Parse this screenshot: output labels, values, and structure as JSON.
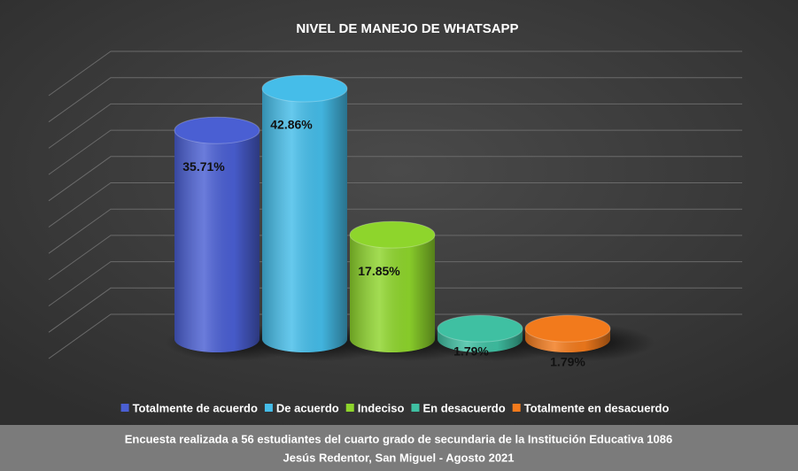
{
  "chart_data": {
    "type": "bar",
    "title": "NIVEL DE MANEJO DE WHATSAPP",
    "categories": [
      "Totalmente de acuerdo",
      "De acuerdo",
      "Indeciso",
      "En desacuerdo",
      "Totalmente en desacuerdo"
    ],
    "values": [
      35.71,
      42.86,
      17.85,
      1.79,
      1.79
    ],
    "value_labels": [
      "35.71%",
      "42.86%",
      "17.85%",
      "1.79%",
      "1.79%"
    ],
    "colors": [
      "#4a5fd3",
      "#45bde9",
      "#8ed52c",
      "#3fc0a2",
      "#f27a1c"
    ],
    "ylim": [
      0,
      50
    ],
    "yticks": [
      0,
      5,
      10,
      15,
      20,
      25,
      30,
      35,
      40,
      45,
      50
    ],
    "grid": true,
    "legend": "bottom",
    "footer": [
      "Encuesta realizada a 56 estudiantes del cuarto grado de secundaria de la Institución Educativa 1086",
      "Jesús Redentor, San Miguel - Agosto 2021"
    ]
  }
}
